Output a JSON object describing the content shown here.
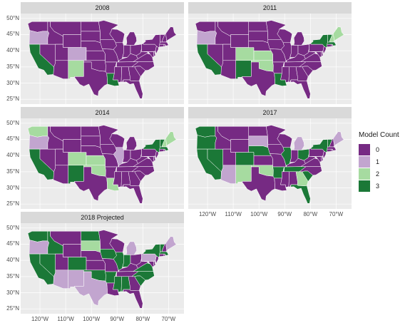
{
  "colors": {
    "0": "#762a83",
    "1": "#c2a5cf",
    "2": "#a6dba0",
    "3": "#1b7837",
    "strip": "#d9d9d9",
    "panel": "#ebebeb",
    "grid": "#ffffff",
    "border": "#ffffff"
  },
  "axes": {
    "lat_labels": [
      "50°N",
      "45°N",
      "40°N",
      "35°N",
      "30°N",
      "25°N"
    ],
    "lon_labels": [
      "120°W",
      "110°W",
      "100°W",
      "90°W",
      "80°W",
      "70°W"
    ]
  },
  "legend": {
    "title": "Model Count",
    "items": [
      {
        "label": "0",
        "value": 0
      },
      {
        "label": "1",
        "value": 1
      },
      {
        "label": "2",
        "value": 2
      },
      {
        "label": "3",
        "value": 3
      }
    ]
  },
  "panels": [
    {
      "title": "2008",
      "zero_default": true,
      "states": {
        "WA": 0,
        "OR": 1,
        "CA": 3,
        "NV": 0,
        "ID": 0,
        "MT": 0,
        "WY": 0,
        "UT": 0,
        "CO": 1,
        "AZ": 0,
        "NM": 2,
        "ND": 0,
        "SD": 0,
        "NE": 0,
        "KS": 0,
        "OK": 0,
        "TX": 0,
        "MN": 0,
        "IA": 0,
        "MO": 0,
        "AR": 0,
        "LA": 3,
        "WI": 0,
        "IL": 0,
        "MI": 0,
        "IN": 0,
        "OH": 0,
        "KY": 0,
        "TN": 0,
        "MS": 0,
        "AL": 0,
        "GA": 0,
        "FL": 0,
        "SC": 0,
        "NC": 0,
        "VA": 0,
        "WV": 0,
        "MD": 0,
        "DE": 0,
        "PA": 0,
        "NJ": 0,
        "NY": 0,
        "CT": 0,
        "RI": 0,
        "MA": 0,
        "VT": 0,
        "NH": 0,
        "ME": 0
      }
    },
    {
      "title": "2011",
      "states": {
        "WA": 0,
        "OR": 1,
        "CA": 3,
        "NV": 0,
        "ID": 0,
        "MT": 0,
        "WY": 0,
        "UT": 0,
        "CO": 2,
        "AZ": 0,
        "NM": 3,
        "ND": 0,
        "SD": 0,
        "NE": 0,
        "KS": 2,
        "OK": 2,
        "TX": 0,
        "MN": 0,
        "IA": 0,
        "MO": 0,
        "AR": 0,
        "LA": 3,
        "WI": 0,
        "IL": 0,
        "MI": 0,
        "IN": 0,
        "OH": 0,
        "KY": 0,
        "TN": 0,
        "MS": 0,
        "AL": 0,
        "GA": 0,
        "FL": 0,
        "SC": 0,
        "NC": 0,
        "VA": 0,
        "WV": 0,
        "MD": 0,
        "DE": 0,
        "PA": 0,
        "NJ": 0,
        "NY": 3,
        "CT": 0,
        "RI": 0,
        "MA": 3,
        "VT": 3,
        "NH": 2,
        "ME": 2
      }
    },
    {
      "title": "2014",
      "states": {
        "WA": 2,
        "OR": 1,
        "CA": 3,
        "NV": 0,
        "ID": 0,
        "MT": 0,
        "WY": 0,
        "UT": 0,
        "CO": 2,
        "AZ": 0,
        "NM": 3,
        "ND": 0,
        "SD": 0,
        "NE": 0,
        "KS": 2,
        "OK": 2,
        "TX": 0,
        "MN": 0,
        "IA": 0,
        "MO": 0,
        "AR": 0,
        "LA": 2,
        "WI": 0,
        "IL": 1,
        "MI": 0,
        "IN": 0,
        "OH": 0,
        "KY": 0,
        "TN": 0,
        "MS": 0,
        "AL": 0,
        "GA": 0,
        "FL": 0,
        "SC": 0,
        "NC": 0,
        "VA": 0,
        "WV": 0,
        "MD": 0,
        "DE": 0,
        "PA": 0,
        "NJ": 0,
        "NY": 3,
        "CT": 0,
        "RI": 0,
        "MA": 3,
        "VT": 3,
        "NH": 2,
        "ME": 2
      }
    },
    {
      "title": "2017",
      "states": {
        "WA": 3,
        "OR": 3,
        "CA": 3,
        "NV": 3,
        "ID": 0,
        "MT": 0,
        "WY": 0,
        "UT": 0,
        "CO": 3,
        "AZ": 1,
        "NM": 2,
        "ND": 0,
        "SD": 1,
        "NE": 3,
        "KS": 0,
        "OK": 2,
        "TX": 0,
        "MN": 0,
        "IA": 0,
        "MO": 0,
        "AR": 3,
        "LA": 0,
        "WI": 0,
        "IL": 3,
        "MI": 1,
        "IN": 0,
        "OH": 3,
        "KY": 0,
        "TN": 3,
        "MS": 0,
        "AL": 0,
        "GA": 2,
        "FL": 3,
        "SC": 3,
        "NC": 0,
        "VA": 0,
        "WV": 0,
        "MD": 0,
        "DE": 0,
        "PA": 0,
        "NJ": 0,
        "NY": 3,
        "CT": 0,
        "RI": 0,
        "MA": 0,
        "VT": 3,
        "NH": 0,
        "ME": 1
      }
    },
    {
      "title": "2018 Projected",
      "states": {
        "WA": 3,
        "OR": 1,
        "CA": 3,
        "NV": 3,
        "ID": 3,
        "MT": 0,
        "WY": 0,
        "UT": 0,
        "CO": 3,
        "AZ": 1,
        "NM": 1,
        "ND": 3,
        "SD": 2,
        "NE": 0,
        "KS": 0,
        "OK": 3,
        "TX": 1,
        "MN": 0,
        "IA": 3,
        "MO": 0,
        "AR": 3,
        "LA": 0,
        "WI": 0,
        "IL": 3,
        "MI": 1,
        "IN": 3,
        "OH": 0,
        "KY": 0,
        "TN": 0,
        "MS": 3,
        "AL": 3,
        "GA": 0,
        "FL": 0,
        "SC": 3,
        "NC": 3,
        "VA": 3,
        "WV": 0,
        "MD": 0,
        "DE": 0,
        "PA": 1,
        "NJ": 0,
        "NY": 3,
        "CT": 0,
        "RI": 0,
        "MA": 3,
        "VT": 3,
        "NH": 0,
        "ME": 1
      }
    }
  ]
}
